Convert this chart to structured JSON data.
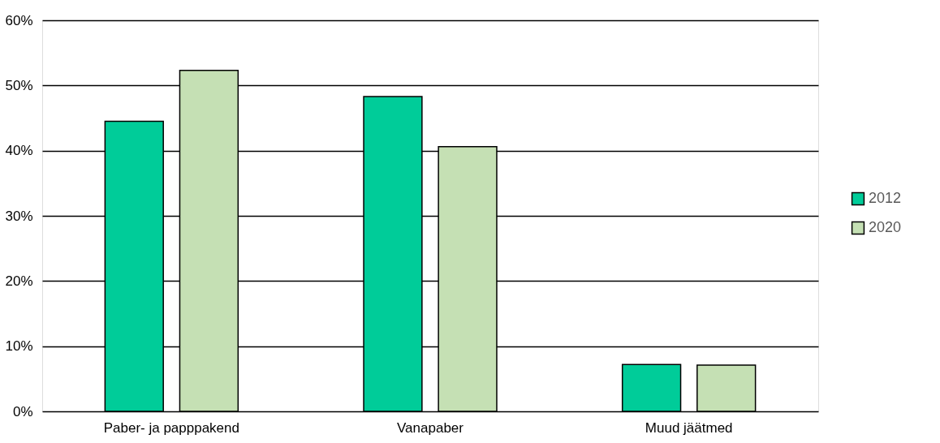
{
  "chart_data": {
    "type": "bar",
    "categories": [
      "Paber- ja papppakend",
      "Vanapaber",
      "Muud jäätmed"
    ],
    "series": [
      {
        "name": "2012",
        "color": "#00cc99",
        "values": [
          44.5,
          48.3,
          7.2
        ]
      },
      {
        "name": "2020",
        "color": "#c5e0b4",
        "values": [
          52.3,
          40.6,
          7.1
        ]
      }
    ],
    "ylim": [
      0,
      60
    ],
    "yticks": [
      {
        "value": 0,
        "label": "0%"
      },
      {
        "value": 10,
        "label": "10%"
      },
      {
        "value": 20,
        "label": "20%"
      },
      {
        "value": 30,
        "label": "30%"
      },
      {
        "value": 40,
        "label": "40%"
      },
      {
        "value": 50,
        "label": "50%"
      },
      {
        "value": 60,
        "label": "60%"
      }
    ],
    "grid": "y",
    "legend": "right"
  }
}
